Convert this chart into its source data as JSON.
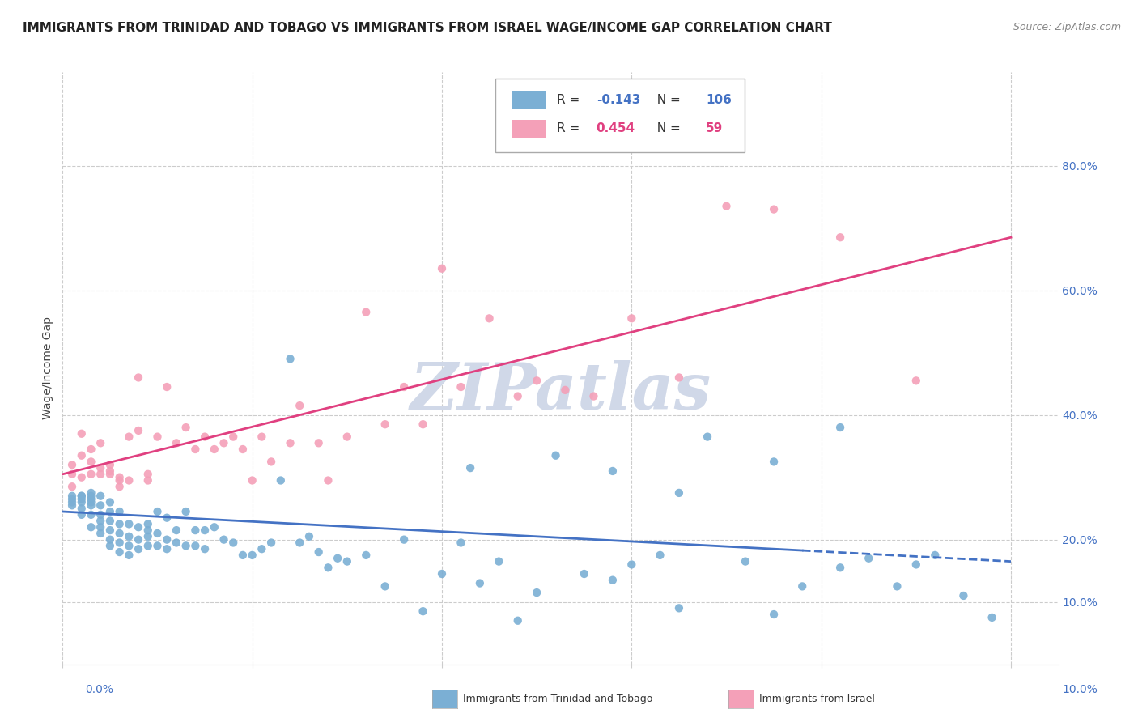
{
  "title": "IMMIGRANTS FROM TRINIDAD AND TOBAGO VS IMMIGRANTS FROM ISRAEL WAGE/INCOME GAP CORRELATION CHART",
  "source": "Source: ZipAtlas.com",
  "ylabel": "Wage/Income Gap",
  "right_yticks": [
    0.1,
    0.2,
    0.4,
    0.6,
    0.8
  ],
  "blue_scatter_x": [
    0.001,
    0.001,
    0.001,
    0.001,
    0.002,
    0.002,
    0.002,
    0.002,
    0.002,
    0.002,
    0.003,
    0.003,
    0.003,
    0.003,
    0.003,
    0.003,
    0.003,
    0.004,
    0.004,
    0.004,
    0.004,
    0.004,
    0.004,
    0.005,
    0.005,
    0.005,
    0.005,
    0.005,
    0.005,
    0.006,
    0.006,
    0.006,
    0.006,
    0.006,
    0.007,
    0.007,
    0.007,
    0.007,
    0.008,
    0.008,
    0.008,
    0.009,
    0.009,
    0.009,
    0.009,
    0.01,
    0.01,
    0.01,
    0.011,
    0.011,
    0.011,
    0.012,
    0.012,
    0.013,
    0.013,
    0.014,
    0.014,
    0.015,
    0.015,
    0.016,
    0.017,
    0.018,
    0.019,
    0.02,
    0.021,
    0.022,
    0.023,
    0.024,
    0.025,
    0.026,
    0.027,
    0.028,
    0.029,
    0.03,
    0.032,
    0.034,
    0.036,
    0.038,
    0.04,
    0.042,
    0.044,
    0.046,
    0.048,
    0.05,
    0.052,
    0.055,
    0.058,
    0.06,
    0.063,
    0.065,
    0.068,
    0.072,
    0.075,
    0.078,
    0.082,
    0.085,
    0.088,
    0.092,
    0.095,
    0.098,
    0.043,
    0.058,
    0.065,
    0.075,
    0.082,
    0.09
  ],
  "blue_scatter_y": [
    0.265,
    0.27,
    0.255,
    0.26,
    0.24,
    0.26,
    0.27,
    0.25,
    0.265,
    0.27,
    0.22,
    0.24,
    0.255,
    0.26,
    0.265,
    0.27,
    0.275,
    0.21,
    0.22,
    0.23,
    0.24,
    0.255,
    0.27,
    0.19,
    0.2,
    0.215,
    0.23,
    0.245,
    0.26,
    0.18,
    0.195,
    0.21,
    0.225,
    0.245,
    0.175,
    0.19,
    0.205,
    0.225,
    0.185,
    0.2,
    0.22,
    0.19,
    0.205,
    0.215,
    0.225,
    0.19,
    0.21,
    0.245,
    0.185,
    0.2,
    0.235,
    0.195,
    0.215,
    0.19,
    0.245,
    0.19,
    0.215,
    0.185,
    0.215,
    0.22,
    0.2,
    0.195,
    0.175,
    0.175,
    0.185,
    0.195,
    0.295,
    0.49,
    0.195,
    0.205,
    0.18,
    0.155,
    0.17,
    0.165,
    0.175,
    0.125,
    0.2,
    0.085,
    0.145,
    0.195,
    0.13,
    0.165,
    0.07,
    0.115,
    0.335,
    0.145,
    0.135,
    0.16,
    0.175,
    0.09,
    0.365,
    0.165,
    0.08,
    0.125,
    0.155,
    0.17,
    0.125,
    0.175,
    0.11,
    0.075,
    0.315,
    0.31,
    0.275,
    0.325,
    0.38,
    0.16
  ],
  "pink_scatter_x": [
    0.001,
    0.001,
    0.001,
    0.002,
    0.002,
    0.002,
    0.003,
    0.003,
    0.003,
    0.004,
    0.004,
    0.004,
    0.005,
    0.005,
    0.005,
    0.006,
    0.006,
    0.006,
    0.007,
    0.007,
    0.008,
    0.008,
    0.009,
    0.009,
    0.01,
    0.011,
    0.012,
    0.013,
    0.014,
    0.015,
    0.016,
    0.017,
    0.018,
    0.019,
    0.02,
    0.021,
    0.022,
    0.024,
    0.025,
    0.027,
    0.028,
    0.03,
    0.032,
    0.034,
    0.036,
    0.038,
    0.04,
    0.042,
    0.045,
    0.048,
    0.05,
    0.053,
    0.056,
    0.06,
    0.065,
    0.07,
    0.075,
    0.082,
    0.09
  ],
  "pink_scatter_y": [
    0.285,
    0.305,
    0.32,
    0.335,
    0.37,
    0.3,
    0.305,
    0.325,
    0.345,
    0.305,
    0.315,
    0.355,
    0.305,
    0.31,
    0.32,
    0.285,
    0.295,
    0.3,
    0.295,
    0.365,
    0.375,
    0.46,
    0.295,
    0.305,
    0.365,
    0.445,
    0.355,
    0.38,
    0.345,
    0.365,
    0.345,
    0.355,
    0.365,
    0.345,
    0.295,
    0.365,
    0.325,
    0.355,
    0.415,
    0.355,
    0.295,
    0.365,
    0.565,
    0.385,
    0.445,
    0.385,
    0.635,
    0.445,
    0.555,
    0.43,
    0.455,
    0.44,
    0.43,
    0.555,
    0.46,
    0.735,
    0.73,
    0.685,
    0.455
  ],
  "blue_line": {
    "x0": 0.0,
    "x1": 0.1,
    "y0": 0.245,
    "y1": 0.165,
    "dash_start": 0.078
  },
  "pink_line": {
    "x0": 0.0,
    "x1": 0.1,
    "y0": 0.305,
    "y1": 0.685
  },
  "xlim": [
    0.0,
    0.105
  ],
  "ylim": [
    0.0,
    0.95
  ],
  "background_color": "#ffffff",
  "grid_color": "#cccccc",
  "blue_dot_color": "#7bafd4",
  "blue_line_color": "#4472c4",
  "pink_dot_color": "#f4a0b8",
  "pink_line_color": "#e04080",
  "watermark_text": "ZIPatlas",
  "watermark_color": "#d0d8e8",
  "r_blue": "-0.143",
  "n_blue": "106",
  "r_pink": "0.454",
  "n_pink": "59",
  "legend_bottom_blue": "Immigrants from Trinidad and Tobago",
  "legend_bottom_pink": "Immigrants from Israel",
  "title_fontsize": 11,
  "axis_label_fontsize": 10,
  "legend_fontsize": 11
}
